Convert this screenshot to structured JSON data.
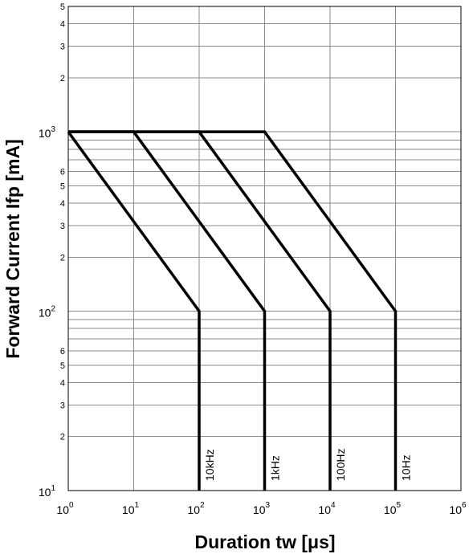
{
  "chart_data": {
    "type": "line",
    "xscale": "log",
    "yscale": "log",
    "xlim": [
      1,
      1000000
    ],
    "ylim": [
      10,
      5000
    ],
    "xlabel": "Duration tw [μs]",
    "ylabel": "Forward Current Ifp [mA]",
    "grid": true,
    "x_major_ticks": [
      {
        "base": "10",
        "exp": "0",
        "value": 1
      },
      {
        "base": "10",
        "exp": "1",
        "value": 10
      },
      {
        "base": "10",
        "exp": "2",
        "value": 100
      },
      {
        "base": "10",
        "exp": "3",
        "value": 1000
      },
      {
        "base": "10",
        "exp": "4",
        "value": 10000
      },
      {
        "base": "10",
        "exp": "5",
        "value": 100000
      },
      {
        "base": "10",
        "exp": "6",
        "value": 1000000
      }
    ],
    "y_major_ticks": [
      {
        "base": "10",
        "exp": "1",
        "value": 10
      },
      {
        "base": "10",
        "exp": "2",
        "value": 100
      },
      {
        "base": "10",
        "exp": "3",
        "value": 1000
      }
    ],
    "y_minor_labels": [
      {
        "label": "2",
        "value": 20
      },
      {
        "label": "3",
        "value": 30
      },
      {
        "label": "4",
        "value": 40
      },
      {
        "label": "5",
        "value": 50
      },
      {
        "label": "6",
        "value": 60
      },
      {
        "label": "2",
        "value": 200
      },
      {
        "label": "3",
        "value": 300
      },
      {
        "label": "4",
        "value": 400
      },
      {
        "label": "5",
        "value": 500
      },
      {
        "label": "6",
        "value": 600
      },
      {
        "label": "2",
        "value": 2000
      },
      {
        "label": "3",
        "value": 3000
      },
      {
        "label": "4",
        "value": 4000
      },
      {
        "label": "5",
        "value": 5000
      }
    ],
    "series": [
      {
        "name": "10kHz",
        "points": [
          [
            1,
            1000
          ],
          [
            100,
            100
          ],
          [
            100,
            10
          ]
        ]
      },
      {
        "name": "1kHz",
        "points": [
          [
            1,
            1000
          ],
          [
            10,
            1000
          ],
          [
            1000,
            100
          ],
          [
            1000,
            10
          ]
        ]
      },
      {
        "name": "100Hz",
        "points": [
          [
            1,
            1000
          ],
          [
            100,
            1000
          ],
          [
            10000,
            100
          ],
          [
            10000,
            10
          ]
        ]
      },
      {
        "name": "10Hz",
        "points": [
          [
            1,
            1000
          ],
          [
            1000,
            1000
          ],
          [
            100000,
            100
          ],
          [
            100000,
            10
          ]
        ]
      }
    ]
  }
}
